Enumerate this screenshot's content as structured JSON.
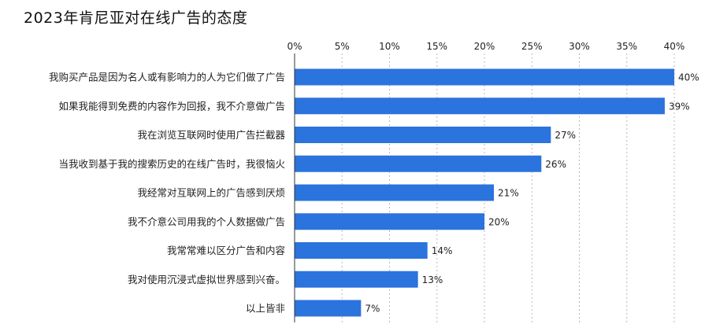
{
  "title": "2023年肯尼亚对在线广告的态度",
  "chart_data": {
    "type": "bar",
    "orientation": "horizontal",
    "title": "2023年肯尼亚对在线广告的态度",
    "xlabel": "",
    "ylabel": "",
    "xlim": [
      0,
      40
    ],
    "xticks": [
      "0%",
      "5%",
      "10%",
      "15%",
      "20%",
      "25%",
      "30%",
      "35%",
      "40%"
    ],
    "tick_values": [
      0,
      5,
      10,
      15,
      20,
      25,
      30,
      35,
      40
    ],
    "grid": true,
    "legend": "none",
    "bar_color": "#2b73dd",
    "categories": [
      "我购买产品是因为名人或有影响力的人为它们做了广告",
      "如果我能得到免费的内容作为回报，我不介意做广告",
      "我在浏览互联网时使用广告拦截器",
      "当我收到基于我的搜索历史的在线广告时，我很恼火",
      "我经常对互联网上的广告感到厌烦",
      "我不介意公司用我的个人数据做广告",
      "我常常难以区分广告和内容",
      "我对使用沉浸式虚拟世界感到兴奋。",
      "以上皆非"
    ],
    "values": [
      40,
      39,
      27,
      26,
      21,
      20,
      14,
      13,
      7
    ],
    "value_labels": [
      "40%",
      "39%",
      "27%",
      "26%",
      "21%",
      "20%",
      "14%",
      "13%",
      "7%"
    ]
  }
}
